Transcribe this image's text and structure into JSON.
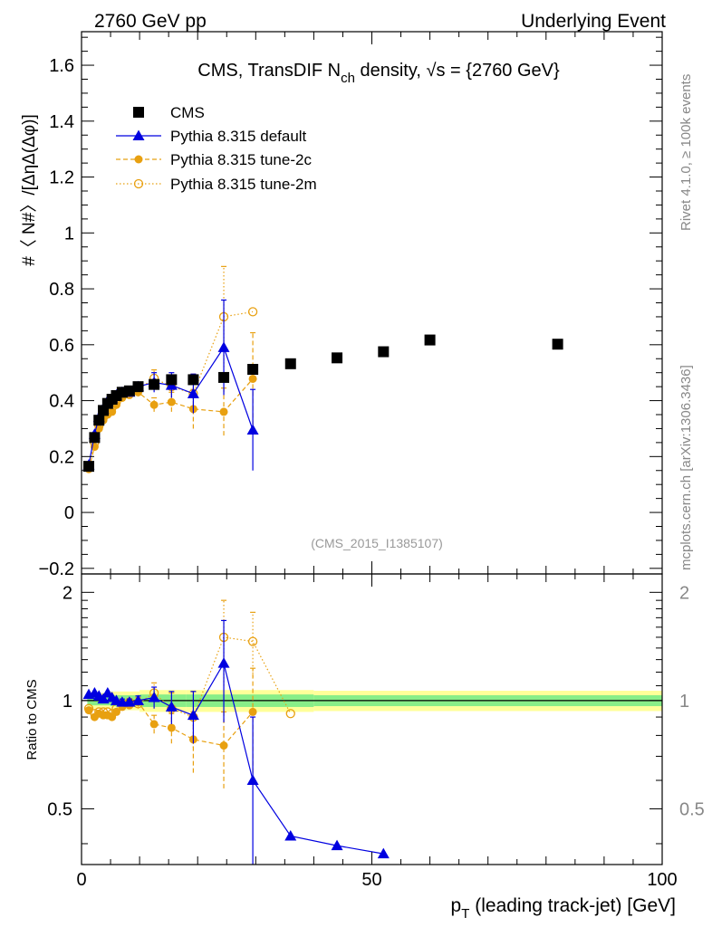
{
  "header": {
    "left": "2760 GeV pp",
    "right": "Underlying Event"
  },
  "side_labels": {
    "rivet": "Rivet 4.1.0, ≥ 100k events",
    "mcplots": "mcplots.cern.ch [arXiv:1306.3436]"
  },
  "chart_data": {
    "type": "scatter",
    "title_prefix": "CMS, TransDIF N",
    "title_sub": "ch",
    "title_suffix": " density, √s = {2760 GeV}",
    "watermark": "(CMS_2015_I1385107)",
    "ylabel": "#〈 N#〉/[ΔηΔ(Δφ)]",
    "ratio_ylabel": "Ratio to CMS",
    "xlabel_prefix": "p",
    "xlabel_sub": "T",
    "xlabel_suffix": " (leading track-jet) [GeV]",
    "xlim": [
      0,
      100
    ],
    "ylim": [
      -0.22,
      1.72
    ],
    "ratio_ylim": [
      0.35,
      2.25
    ],
    "xticks": [
      0,
      50,
      100
    ],
    "xtick_labels": [
      "0",
      "50",
      "100"
    ],
    "yticks": [
      -0.2,
      0,
      0.2,
      0.4,
      0.6,
      0.8,
      1,
      1.2,
      1.4,
      1.6
    ],
    "ytick_labels": [
      "−0.2",
      "0",
      "0.2",
      "0.4",
      "0.6",
      "0.8",
      "1",
      "1.2",
      "1.4",
      "1.6"
    ],
    "ratio_yticks": [
      0.5,
      1,
      2
    ],
    "ratio_ytick_labels": [
      "0.5",
      "1",
      "2"
    ],
    "legend": [
      "CMS",
      "Pythia 8.315 default",
      "Pythia 8.315 tune-2c",
      "Pythia 8.315 tune-2m"
    ],
    "colors": {
      "cms": "#000000",
      "default": "#0000e0",
      "tune2c": "#e8a010",
      "tune2m": "#e8a010",
      "band_inner": "#88ee88",
      "band_outer": "#ffff99"
    },
    "ratio_bands": [
      {
        "x0": 1,
        "x1": 5,
        "inner": 0.03,
        "outer": 0.05
      },
      {
        "x0": 5,
        "x1": 10,
        "inner": 0.035,
        "outer": 0.06
      },
      {
        "x0": 10,
        "x1": 18,
        "inner": 0.04,
        "outer": 0.07
      },
      {
        "x0": 18,
        "x1": 40,
        "inner": 0.04,
        "outer": 0.07
      },
      {
        "x0": 40,
        "x1": 100,
        "inner": 0.035,
        "outer": 0.065
      }
    ],
    "series": [
      {
        "name": "CMS",
        "style": "square",
        "x": [
          1.25,
          2.25,
          3.0,
          3.75,
          4.5,
          5.25,
          6.0,
          7.0,
          8.25,
          9.75,
          12.5,
          15.5,
          19.25,
          24.5,
          29.5,
          36,
          44,
          52,
          60,
          82
        ],
        "y": [
          0.165,
          0.268,
          0.33,
          0.365,
          0.39,
          0.405,
          0.418,
          0.43,
          0.435,
          0.45,
          0.458,
          0.475,
          0.475,
          0.483,
          0.512,
          0.532,
          0.553,
          0.575,
          0.617,
          0.602
        ],
        "yerr": [
          0,
          0,
          0,
          0,
          0,
          0,
          0,
          0,
          0,
          0,
          0,
          0,
          0,
          0,
          0,
          0,
          0,
          0,
          0,
          0
        ]
      },
      {
        "name": "Pythia 8.315 default",
        "style": "triangle-line",
        "x": [
          1.25,
          2.25,
          3.0,
          3.75,
          4.5,
          5.25,
          6.0,
          7.0,
          8.25,
          9.75,
          12.5,
          15.5,
          19.25,
          24.5,
          29.5
        ],
        "y": [
          0.17,
          0.28,
          0.34,
          0.37,
          0.4,
          0.41,
          0.42,
          0.43,
          0.43,
          0.45,
          0.465,
          0.455,
          0.425,
          0.59,
          0.295
        ],
        "yerr": [
          0,
          0,
          0,
          0,
          0,
          0,
          0,
          0.01,
          0.01,
          0.015,
          0.035,
          0.045,
          0.07,
          0.17,
          0.145
        ]
      },
      {
        "name": "Pythia 8.315 tune-2c",
        "style": "circle-dash",
        "x": [
          1.25,
          2.25,
          3.0,
          3.75,
          4.5,
          5.25,
          6.0,
          7.0,
          8.25,
          9.75,
          12.5,
          15.5,
          19.25,
          24.5,
          29.5
        ],
        "y": [
          0.155,
          0.235,
          0.3,
          0.33,
          0.35,
          0.36,
          0.385,
          0.41,
          0.42,
          0.43,
          0.385,
          0.395,
          0.37,
          0.36,
          0.478
        ],
        "yerr": [
          0,
          0,
          0,
          0,
          0,
          0,
          0,
          0.01,
          0.01,
          0.015,
          0.025,
          0.035,
          0.07,
          0.085,
          0.165
        ]
      },
      {
        "name": "Pythia 8.315 tune-2m",
        "style": "open-circle-dot",
        "x": [
          1.25,
          2.25,
          3.0,
          3.75,
          4.5,
          5.25,
          6.0,
          7.0,
          8.25,
          9.75,
          12.5,
          15.5,
          19.25,
          24.5,
          29.5
        ],
        "y": [
          0.16,
          0.25,
          0.31,
          0.34,
          0.36,
          0.375,
          0.395,
          0.42,
          0.43,
          0.44,
          0.48,
          0.45,
          0.425,
          0.7,
          0.718
        ],
        "yerr": [
          0,
          0,
          0,
          0,
          0,
          0,
          0,
          0.01,
          0.01,
          0.015,
          0.03,
          0.04,
          0.07,
          0.18,
          0
        ]
      }
    ],
    "ratio_series": [
      {
        "name": "Pythia 8.315 default",
        "style": "triangle-line",
        "x": [
          1.25,
          2.25,
          3.0,
          3.75,
          4.5,
          5.25,
          6.0,
          7.0,
          8.25,
          9.75,
          12.5,
          15.5,
          19.25,
          24.5,
          29.5,
          36,
          44,
          52
        ],
        "y": [
          1.04,
          1.05,
          1.03,
          1.01,
          1.05,
          1.02,
          1.0,
          0.99,
          0.99,
          1.0,
          1.02,
          0.96,
          0.91,
          1.27,
          0.6,
          0.42,
          0.395,
          0.375
        ],
        "yerr": [
          0,
          0,
          0,
          0,
          0,
          0,
          0,
          0.02,
          0.02,
          0.03,
          0.07,
          0.1,
          0.15,
          0.4,
          0.3,
          0,
          0,
          0
        ]
      },
      {
        "name": "Pythia 8.315 tune-2c",
        "style": "circle-dash",
        "x": [
          1.25,
          2.25,
          3.0,
          3.75,
          4.5,
          5.25,
          6.0,
          7.0,
          8.25,
          9.75,
          12.5,
          15.5,
          19.25,
          24.5,
          29.5
        ],
        "y": [
          0.94,
          0.9,
          0.92,
          0.91,
          0.91,
          0.9,
          0.93,
          0.96,
          0.97,
          0.99,
          0.86,
          0.84,
          0.78,
          0.75,
          0.93
        ],
        "yerr": [
          0,
          0,
          0,
          0,
          0,
          0,
          0,
          0.02,
          0.02,
          0.03,
          0.05,
          0.08,
          0.15,
          0.18,
          0.3
        ]
      },
      {
        "name": "Pythia 8.315 tune-2m",
        "style": "open-circle-dot",
        "x": [
          1.25,
          2.25,
          3.0,
          3.75,
          4.5,
          5.25,
          6.0,
          7.0,
          8.25,
          9.75,
          12.5,
          15.5,
          19.25,
          24.5,
          29.5,
          36
        ],
        "y": [
          0.95,
          0.92,
          0.93,
          0.93,
          0.93,
          0.92,
          0.95,
          0.98,
          0.99,
          0.98,
          1.05,
          0.95,
          0.9,
          1.5,
          1.46,
          0.92
        ],
        "yerr": [
          0,
          0,
          0,
          0,
          0,
          0,
          0,
          0.02,
          0.02,
          0.03,
          0.07,
          0.1,
          0.16,
          0.4,
          0.3,
          0
        ]
      }
    ]
  }
}
